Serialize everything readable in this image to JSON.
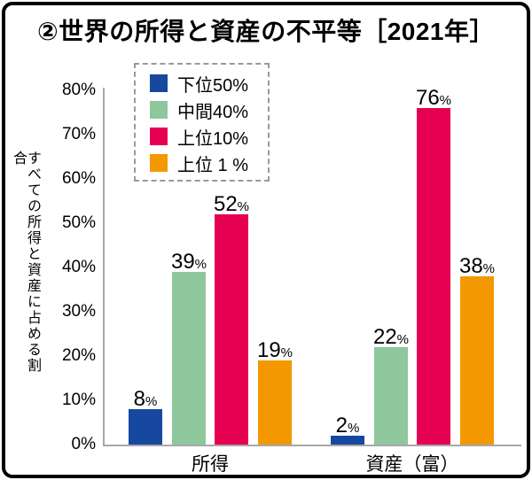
{
  "title": "②世界の所得と資産の不平等［2021年］",
  "y_axis": {
    "label": "すべての所得と資産に占める割合",
    "ticks": [
      "80%",
      "70%",
      "60%",
      "50%",
      "40%",
      "30%",
      "20%",
      "10%",
      "0%"
    ]
  },
  "legend": {
    "items": [
      {
        "label": "下位50%",
        "color": "#16489f"
      },
      {
        "label": "中間40%",
        "color": "#8ec79b"
      },
      {
        "label": "上位10%",
        "color": "#e60051"
      },
      {
        "label": "上位 1 %",
        "color": "#f39800"
      }
    ]
  },
  "chart_data": {
    "type": "bar",
    "title": "②世界の所得と資産の不平等［2021年］",
    "categories": [
      "所得",
      "資産（富）"
    ],
    "series": [
      {
        "name": "下位50%",
        "color": "#16489f",
        "values": [
          8,
          2
        ]
      },
      {
        "name": "中間40%",
        "color": "#8ec79b",
        "values": [
          39,
          22
        ]
      },
      {
        "name": "上位10%",
        "color": "#e60051",
        "values": [
          52,
          76
        ]
      },
      {
        "name": "上位 1 %",
        "color": "#f39800",
        "values": [
          19,
          38
        ]
      }
    ],
    "value_suffix": "%",
    "xlabel": "",
    "ylabel": "すべての所得と資産に占める割合",
    "ylim": [
      0,
      80
    ],
    "ytick_step": 10,
    "grid": false,
    "legend_position": "top-left-inside",
    "value_labels": true
  }
}
